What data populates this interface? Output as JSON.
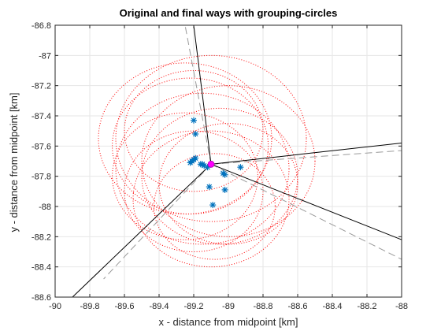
{
  "chart_data": {
    "type": "scatter",
    "title": "Original and final ways with grouping-circles",
    "xlabel": "x - distance from midpoint [km]",
    "ylabel": "y - distance from midpoint [km]",
    "xlim": [
      -90,
      -88
    ],
    "ylim": [
      -88.6,
      -86.8
    ],
    "xticks": [
      -90,
      -89.8,
      -89.6,
      -89.4,
      -89.2,
      -89,
      -88.8,
      -88.6,
      -88.4,
      -88.2,
      -88
    ],
    "yticks": [
      -88.6,
      -88.4,
      -88.2,
      -88,
      -87.8,
      -87.6,
      -87.4,
      -87.2,
      -87,
      -86.8
    ],
    "grid": true,
    "midpoint": {
      "x": -89.1,
      "y": -87.72,
      "color": "#ff00ff"
    },
    "points": {
      "marker": "asterisk",
      "color": "#0072bd",
      "x": [
        -89.2,
        -89.19,
        -89.2,
        -89.19,
        -89.22,
        -89.21,
        -89.16,
        -89.15,
        -89.14,
        -89.12,
        -88.93,
        -89.03,
        -89.02,
        -89.11,
        -89.02,
        -89.09
      ],
      "y": [
        -87.43,
        -87.52,
        -87.69,
        -87.68,
        -87.71,
        -87.7,
        -87.72,
        -87.72,
        -87.73,
        -87.74,
        -87.74,
        -87.78,
        -87.79,
        -87.87,
        -87.89,
        -87.99
      ]
    },
    "final_ways": {
      "color": "#000000",
      "style": "solid",
      "lines": [
        {
          "x": [
            -89.1,
            -89.2
          ],
          "y": [
            -87.72,
            -86.8
          ]
        },
        {
          "x": [
            -89.1,
            -88.0
          ],
          "y": [
            -87.72,
            -87.58
          ]
        },
        {
          "x": [
            -89.1,
            -88.0
          ],
          "y": [
            -87.72,
            -88.22
          ]
        },
        {
          "x": [
            -89.1,
            -89.9
          ],
          "y": [
            -87.72,
            -88.6
          ]
        }
      ]
    },
    "original_ways": {
      "color": "#999999",
      "style": "dashed",
      "lines": [
        {
          "x": [
            -89.1,
            -89.25
          ],
          "y": [
            -87.72,
            -86.8
          ]
        },
        {
          "x": [
            -89.1,
            -88.0
          ],
          "y": [
            -87.72,
            -87.63
          ]
        },
        {
          "x": [
            -89.1,
            -88.0
          ],
          "y": [
            -87.72,
            -88.35
          ]
        },
        {
          "x": [
            -89.1,
            -89.72
          ],
          "y": [
            -87.72,
            -88.48
          ]
        }
      ]
    },
    "grouping_circles": {
      "color": "#ff0000",
      "style": "dotted",
      "circles": [
        {
          "cx": -89.25,
          "cy": -87.55,
          "r": 0.5
        },
        {
          "cx": -89.22,
          "cy": -87.6,
          "r": 0.45
        },
        {
          "cx": -89.2,
          "cy": -87.5,
          "r": 0.4
        },
        {
          "cx": -89.1,
          "cy": -87.55,
          "r": 0.55
        },
        {
          "cx": -89.15,
          "cy": -87.75,
          "r": 0.5
        },
        {
          "cx": -89.05,
          "cy": -87.8,
          "r": 0.45
        },
        {
          "cx": -89.0,
          "cy": -87.85,
          "r": 0.4
        },
        {
          "cx": -89.2,
          "cy": -87.9,
          "r": 0.4
        },
        {
          "cx": -89.1,
          "cy": -87.95,
          "r": 0.45
        },
        {
          "cx": -89.0,
          "cy": -87.7,
          "r": 0.5
        },
        {
          "cx": -89.25,
          "cy": -87.8,
          "r": 0.42
        },
        {
          "cx": -89.08,
          "cy": -88.0,
          "r": 0.35
        }
      ]
    }
  }
}
